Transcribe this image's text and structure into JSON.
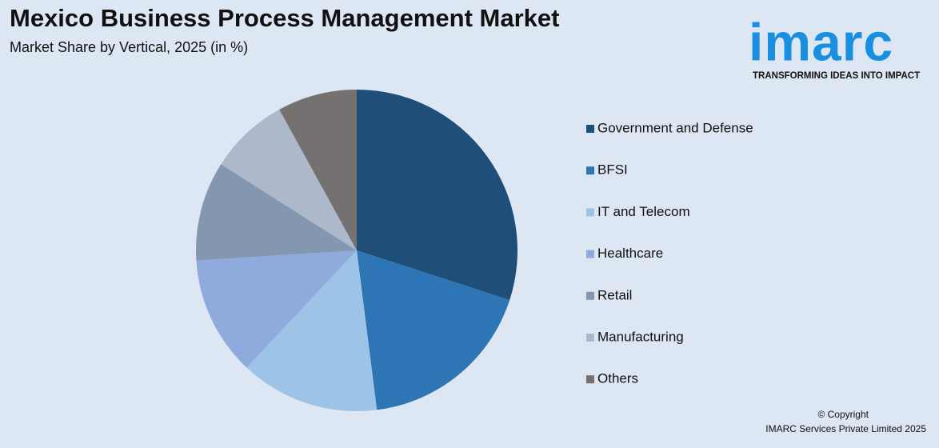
{
  "chart_data": {
    "type": "pie",
    "title": "Mexico Business Process Management Market",
    "subtitle": "Market Share by Vertical, 2025 (in %)",
    "categories": [
      "Government and Defense",
      "BFSI",
      "IT and Telecom",
      "Healthcare",
      "Retail",
      "Manufacturing",
      "Others"
    ],
    "values": [
      30,
      18,
      14,
      12,
      10,
      8,
      8
    ],
    "colors": [
      "#1f4e79",
      "#2e75b6",
      "#9dc3e6",
      "#8faadc",
      "#8497b0",
      "#adb9ca",
      "#767171"
    ],
    "legend": "right"
  },
  "logo": {
    "name": "imarc",
    "tagline": "TRANSFORMING IDEAS INTO IMPACT"
  },
  "footer": {
    "copyright": "© Copyright",
    "company": "IMARC Services Private Limited 2025"
  }
}
